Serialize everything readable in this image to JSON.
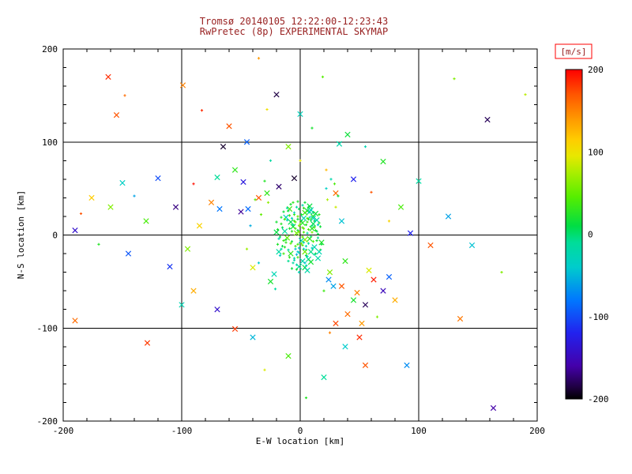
{
  "colors": {
    "background": "#ffffff",
    "title": "#992222",
    "axis": "#000000",
    "colorbar_unit_box": "#ff0000"
  },
  "chart_data": {
    "type": "scatter",
    "title": "Tromsø 20140105 12:22:00-12:23:43",
    "subtitle": "RwPretec (8p) EXPERIMENTAL SKYMAP",
    "xlabel": "E-W location [km]",
    "ylabel": "N-S location [km]",
    "xlim": [
      -200,
      200
    ],
    "ylim": [
      -200,
      200
    ],
    "x_ticks": [
      -200,
      -100,
      0,
      100,
      200
    ],
    "y_ticks": [
      -200,
      -100,
      0,
      100,
      200
    ],
    "grid_lines_x": [
      -100,
      0,
      100
    ],
    "grid_lines_y": [
      -100,
      0,
      100
    ],
    "minor_tick_step": 20,
    "grid": true,
    "legend_position": "colorbar-right",
    "colorbar": {
      "label": "[m/s]",
      "min": -200,
      "max": 200,
      "ticks": [
        200,
        100,
        0,
        -100,
        -200
      ],
      "stops": [
        [
          -200,
          "#000000"
        ],
        [
          -185,
          "#200044"
        ],
        [
          -160,
          "#4400aa"
        ],
        [
          -120,
          "#2222ee"
        ],
        [
          -80,
          "#0077ff"
        ],
        [
          -40,
          "#00cccc"
        ],
        [
          -10,
          "#00dd99"
        ],
        [
          10,
          "#00dd44"
        ],
        [
          45,
          "#55ee00"
        ],
        [
          75,
          "#aaee00"
        ],
        [
          95,
          "#e8e800"
        ],
        [
          115,
          "#ffcc00"
        ],
        [
          140,
          "#ff9900"
        ],
        [
          170,
          "#ff5500"
        ],
        [
          200,
          "#ff0000"
        ]
      ]
    },
    "marker_types": {
      "0": "dot",
      "1": "cross"
    },
    "points_columns": [
      "x_km",
      "y_km",
      "velocity_ms",
      "marker"
    ],
    "points": [
      [
        -162,
        170,
        185,
        1
      ],
      [
        -155,
        129,
        170,
        1
      ],
      [
        -148,
        150,
        160,
        0
      ],
      [
        -99,
        161,
        150,
        1
      ],
      [
        -83,
        134,
        185,
        0
      ],
      [
        -65,
        95,
        -190,
        1
      ],
      [
        -120,
        61,
        -100,
        1
      ],
      [
        -150,
        56,
        -35,
        1
      ],
      [
        -176,
        40,
        115,
        1
      ],
      [
        -185,
        23,
        170,
        0
      ],
      [
        -160,
        30,
        60,
        1
      ],
      [
        -140,
        42,
        -60,
        0
      ],
      [
        -105,
        30,
        -170,
        1
      ],
      [
        -90,
        55,
        195,
        0
      ],
      [
        -70,
        62,
        -10,
        1
      ],
      [
        -55,
        70,
        30,
        1
      ],
      [
        -48,
        57,
        -130,
        1
      ],
      [
        -75,
        35,
        150,
        1
      ],
      [
        -68,
        28,
        -80,
        1
      ],
      [
        -85,
        10,
        110,
        1
      ],
      [
        -95,
        -15,
        60,
        1
      ],
      [
        -110,
        -34,
        -110,
        1
      ],
      [
        -129,
        -116,
        180,
        1
      ],
      [
        -190,
        -92,
        160,
        1
      ],
      [
        -190,
        5,
        -140,
        1
      ],
      [
        -170,
        -10,
        25,
        0
      ],
      [
        -145,
        -20,
        -95,
        1
      ],
      [
        -130,
        15,
        40,
        1
      ],
      [
        130,
        168,
        60,
        0
      ],
      [
        158,
        124,
        -180,
        1
      ],
      [
        190,
        151,
        80,
        0
      ],
      [
        163,
        -186,
        -160,
        1
      ],
      [
        35,
        -55,
        170,
        1
      ],
      [
        48,
        -62,
        150,
        1
      ],
      [
        55,
        -75,
        -180,
        1
      ],
      [
        62,
        -48,
        190,
        1
      ],
      [
        40,
        -85,
        160,
        1
      ],
      [
        52,
        -95,
        140,
        1
      ],
      [
        70,
        -60,
        -150,
        1
      ],
      [
        45,
        -70,
        20,
        1
      ],
      [
        58,
        -38,
        90,
        1
      ],
      [
        30,
        -95,
        175,
        1
      ],
      [
        65,
        -88,
        60,
        0
      ],
      [
        75,
        -45,
        -90,
        1
      ],
      [
        80,
        -70,
        130,
        1
      ],
      [
        50,
        -110,
        185,
        1
      ],
      [
        38,
        -120,
        -40,
        1
      ],
      [
        25,
        -105,
        150,
        0
      ],
      [
        93,
        2,
        -120,
        1
      ],
      [
        110,
        -11,
        170,
        1
      ],
      [
        125,
        20,
        -60,
        1
      ],
      [
        145,
        -11,
        -45,
        1
      ],
      [
        85,
        30,
        40,
        1
      ],
      [
        100,
        58,
        -15,
        1
      ],
      [
        70,
        79,
        25,
        1
      ],
      [
        55,
        95,
        -25,
        0
      ],
      [
        40,
        108,
        15,
        1
      ],
      [
        19,
        170,
        45,
        0
      ],
      [
        33,
        98,
        -20,
        1
      ],
      [
        -35,
        190,
        140,
        0
      ],
      [
        -20,
        151,
        -185,
        1
      ],
      [
        -28,
        135,
        100,
        0
      ],
      [
        -60,
        117,
        170,
        1
      ],
      [
        -45,
        100,
        -90,
        1
      ],
      [
        0,
        130,
        -30,
        1
      ],
      [
        10,
        115,
        20,
        0
      ],
      [
        -10,
        95,
        60,
        1
      ],
      [
        -25,
        80,
        -15,
        0
      ],
      [
        90,
        -140,
        -70,
        1
      ],
      [
        55,
        -140,
        170,
        1
      ],
      [
        20,
        -153,
        -10,
        1
      ],
      [
        -10,
        -130,
        40,
        1
      ],
      [
        -40,
        -110,
        -50,
        1
      ],
      [
        -55,
        -101,
        180,
        1
      ],
      [
        -70,
        -80,
        -140,
        1
      ],
      [
        -30,
        -145,
        90,
        0
      ],
      [
        5,
        -175,
        25,
        0
      ],
      [
        -90,
        -60,
        130,
        1
      ],
      [
        -100,
        -75,
        -25,
        1
      ],
      [
        170,
        -40,
        60,
        0
      ],
      [
        135,
        -90,
        155,
        1
      ],
      [
        60,
        46,
        170,
        0
      ],
      [
        45,
        60,
        -120,
        1
      ],
      [
        75,
        15,
        110,
        0
      ],
      [
        -5,
        61,
        -190,
        1
      ],
      [
        -18,
        52,
        -175,
        1
      ],
      [
        22,
        70,
        125,
        0
      ],
      [
        30,
        45,
        160,
        1
      ],
      [
        -35,
        40,
        170,
        1
      ],
      [
        -50,
        25,
        -165,
        1
      ],
      [
        0,
        80,
        95,
        0
      ],
      [
        -28,
        45,
        30,
        1
      ],
      [
        -35,
        -30,
        -40,
        0
      ],
      [
        25,
        -40,
        60,
        1
      ],
      [
        -42,
        10,
        -55,
        0
      ],
      [
        30,
        30,
        85,
        0
      ],
      [
        -25,
        -50,
        20,
        1
      ],
      [
        22,
        50,
        -35,
        0
      ],
      [
        -38,
        38,
        45,
        0
      ],
      [
        28,
        -55,
        -60,
        1
      ],
      [
        -45,
        -15,
        70,
        0
      ],
      [
        35,
        15,
        -45,
        1
      ],
      [
        -30,
        58,
        25,
        0
      ],
      [
        20,
        -60,
        35,
        0
      ],
      [
        -22,
        -42,
        -25,
        1
      ],
      [
        32,
        42,
        15,
        0
      ],
      [
        -40,
        -35,
        90,
        1
      ],
      [
        26,
        60,
        -20,
        0
      ],
      [
        -33,
        22,
        50,
        0
      ],
      [
        24,
        -48,
        -70,
        1
      ],
      [
        -27,
        35,
        65,
        0
      ],
      [
        38,
        -28,
        30,
        1
      ],
      [
        -21,
        -58,
        -15,
        0
      ],
      [
        29,
        55,
        40,
        0
      ],
      [
        -44,
        28,
        -85,
        1
      ],
      [
        23,
        38,
        75,
        0
      ],
      [
        -2,
        5,
        12,
        0
      ],
      [
        3,
        -8,
        -25,
        0
      ],
      [
        -8,
        14,
        8,
        1
      ],
      [
        6,
        2,
        -15,
        0
      ],
      [
        -14,
        -6,
        30,
        0
      ],
      [
        1,
        22,
        18,
        0
      ],
      [
        9,
        -18,
        -5,
        1
      ],
      [
        -5,
        -25,
        -22,
        0
      ],
      [
        12,
        8,
        40,
        0
      ],
      [
        -20,
        3,
        10,
        1
      ],
      [
        4,
        35,
        15,
        0
      ],
      [
        -1,
        -40,
        -28,
        0
      ],
      [
        15,
        -3,
        -8,
        0
      ],
      [
        -9,
        28,
        35,
        1
      ],
      [
        7,
        17,
        20,
        0
      ],
      [
        -16,
        -15,
        -12,
        0
      ],
      [
        2,
        -2,
        45,
        0
      ],
      [
        -6,
        9,
        18,
        1
      ],
      [
        11,
        24,
        8,
        0
      ],
      [
        -3,
        -32,
        -25,
        0
      ],
      [
        18,
        -10,
        15,
        0
      ],
      [
        -12,
        19,
        -30,
        1
      ],
      [
        5,
        -22,
        10,
        0
      ],
      [
        0,
        12,
        55,
        0
      ],
      [
        -18,
        -4,
        -20,
        0
      ],
      [
        8,
        31,
        12,
        1
      ],
      [
        -4,
        -12,
        38,
        0
      ],
      [
        13,
        5,
        22,
        0
      ],
      [
        -10,
        -28,
        -8,
        0
      ],
      [
        3,
        18,
        -20,
        1
      ],
      [
        -7,
        -7,
        15,
        0
      ],
      [
        16,
        13,
        28,
        0
      ],
      [
        -2,
        -18,
        -42,
        0
      ],
      [
        6,
        26,
        18,
        1
      ],
      [
        -15,
        8,
        5,
        0
      ],
      [
        10,
        -14,
        -32,
        0
      ],
      [
        -1,
        3,
        60,
        0
      ],
      [
        4,
        -35,
        12,
        1
      ],
      [
        -11,
        16,
        -25,
        0
      ],
      [
        14,
        -6,
        18,
        0
      ],
      [
        -5,
        22,
        35,
        0
      ],
      [
        7,
        -26,
        -8,
        1
      ],
      [
        -19,
        -10,
        22,
        0
      ],
      [
        2,
        8,
        48,
        0
      ],
      [
        9,
        -2,
        -15,
        0
      ],
      [
        -8,
        -20,
        28,
        1
      ],
      [
        12,
        15,
        10,
        0
      ],
      [
        -3,
        30,
        -20,
        0
      ],
      [
        17,
        -16,
        38,
        0
      ],
      [
        -13,
        4,
        -12,
        1
      ],
      [
        1,
        -9,
        52,
        0
      ],
      [
        5,
        11,
        25,
        0
      ],
      [
        -6,
        -30,
        -15,
        0
      ],
      [
        11,
        20,
        30,
        1
      ],
      [
        -17,
        -2,
        8,
        0
      ],
      [
        3,
        -15,
        -42,
        0
      ],
      [
        -9,
        7,
        18,
        0
      ],
      [
        8,
        25,
        -22,
        1
      ],
      [
        -2,
        -24,
        35,
        0
      ],
      [
        15,
        1,
        12,
        0
      ],
      [
        -4,
        14,
        48,
        0
      ],
      [
        6,
        -38,
        -20,
        1
      ],
      [
        -12,
        -8,
        28,
        0
      ],
      [
        10,
        10,
        -15,
        0
      ],
      [
        -1,
        28,
        8,
        0
      ],
      [
        4,
        -5,
        65,
        1
      ],
      [
        -7,
        18,
        -32,
        0
      ],
      [
        13,
        -20,
        10,
        0
      ],
      [
        -16,
        12,
        25,
        0
      ],
      [
        2,
        -28,
        -18,
        1
      ],
      [
        7,
        6,
        40,
        0
      ],
      [
        -10,
        -16,
        -12,
        0
      ],
      [
        16,
        22,
        28,
        0
      ],
      [
        -3,
        2,
        55,
        1
      ],
      [
        5,
        -12,
        -22,
        0
      ],
      [
        -14,
        25,
        15,
        0
      ],
      [
        9,
        16,
        35,
        0
      ],
      [
        -1,
        -34,
        -10,
        1
      ],
      [
        11,
        -7,
        45,
        0
      ],
      [
        -6,
        11,
        -20,
        0
      ],
      [
        3,
        29,
        28,
        0
      ],
      [
        -18,
        -18,
        -15,
        1
      ],
      [
        14,
        4,
        8,
        0
      ],
      [
        -2,
        -10,
        38,
        0
      ],
      [
        8,
        19,
        -25,
        0
      ],
      [
        -11,
        -3,
        50,
        1
      ],
      [
        1,
        15,
        12,
        0
      ],
      [
        6,
        -23,
        -30,
        0
      ],
      [
        -8,
        33,
        18,
        0
      ],
      [
        12,
        -13,
        -22,
        1
      ],
      [
        -4,
        7,
        42,
        0
      ],
      [
        17,
        9,
        15,
        0
      ],
      [
        -1,
        -19,
        -28,
        0
      ],
      [
        4,
        24,
        35,
        1
      ],
      [
        -15,
        -12,
        10,
        0
      ],
      [
        10,
        3,
        58,
        0
      ],
      [
        -5,
        -27,
        -20,
        0
      ],
      [
        2,
        13,
        25,
        1
      ],
      [
        -9,
        21,
        32,
        0
      ],
      [
        7,
        -9,
        -12,
        0
      ],
      [
        -13,
        17,
        45,
        0
      ],
      [
        15,
        -25,
        -18,
        1
      ],
      [
        -2,
        36,
        22,
        0
      ],
      [
        5,
        -16,
        -38,
        0
      ],
      [
        -7,
        4,
        28,
        0
      ],
      [
        11,
        12,
        8,
        1
      ],
      [
        -17,
        -22,
        -35,
        0
      ],
      [
        3,
        7,
        50,
        0
      ],
      [
        -3,
        -37,
        15,
        0
      ],
      [
        9,
        27,
        -25,
        1
      ],
      [
        -12,
        -5,
        20,
        0
      ],
      [
        6,
        18,
        40,
        0
      ],
      [
        -1,
        -14,
        -30,
        0
      ],
      [
        13,
        23,
        12,
        1
      ],
      [
        -8,
        -9,
        48,
        0
      ],
      [
        2,
        32,
        -22,
        0
      ],
      [
        -5,
        15,
        35,
        0
      ],
      [
        16,
        -18,
        -25,
        1
      ],
      [
        -10,
        26,
        10,
        0
      ],
      [
        4,
        -30,
        -42,
        0
      ],
      [
        -20,
        14,
        18,
        0
      ],
      [
        8,
        -4,
        28,
        1
      ],
      [
        -2,
        20,
        52,
        0
      ],
      [
        12,
        -21,
        -15,
        0
      ],
      [
        -6,
        35,
        30,
        0
      ],
      [
        1,
        -6,
        -22,
        1
      ],
      [
        -14,
        -20,
        38,
        0
      ],
      [
        7,
        30,
        12,
        0
      ],
      [
        -4,
        -15,
        -45,
        0
      ],
      [
        10,
        7,
        25,
        1
      ],
      [
        -16,
        19,
        20,
        0
      ],
      [
        5,
        -33,
        -32,
        0
      ],
      [
        -1,
        10,
        62,
        0
      ],
      [
        14,
        16,
        -18,
        1
      ],
      [
        -9,
        -24,
        28,
        0
      ],
      [
        3,
        3,
        40,
        0
      ],
      [
        -11,
        29,
        -15,
        0
      ],
      [
        18,
        -8,
        22,
        1
      ],
      [
        -3,
        -21,
        -50,
        0
      ],
      [
        6,
        14,
        35,
        0
      ],
      [
        -7,
        -36,
        12,
        0
      ],
      [
        11,
        18,
        -28,
        1
      ],
      [
        -19,
        6,
        20,
        0
      ],
      [
        2,
        -11,
        44,
        0
      ],
      [
        -5,
        24,
        -30,
        0
      ],
      [
        9,
        -29,
        18,
        1
      ],
      [
        -13,
        -13,
        25,
        0
      ],
      [
        15,
        11,
        -38,
        0
      ],
      [
        -2,
        17,
        12,
        0
      ],
      [
        4,
        -18,
        55,
        1
      ]
    ]
  }
}
